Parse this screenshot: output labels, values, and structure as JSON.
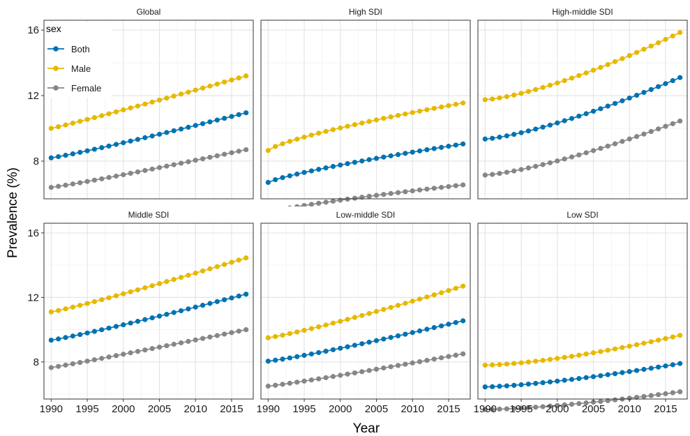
{
  "chart_data": {
    "type": "line",
    "xlabel": "Year",
    "ylabel": "Prevalence (%)",
    "x_ticks": [
      1990,
      1995,
      2000,
      2005,
      2010,
      2015
    ],
    "y_ticks": [
      8,
      12,
      16
    ],
    "xlim": [
      1989,
      2018
    ],
    "ylim": [
      5.7,
      16.6
    ],
    "legend": {
      "title": "sex",
      "placement": "top-left",
      "entries": [
        {
          "label": "Both",
          "color": "#0072B2"
        },
        {
          "label": "Male",
          "color": "#E7B800"
        },
        {
          "label": "Female",
          "color": "#868686"
        }
      ]
    },
    "panels": [
      {
        "title": "Global",
        "series": [
          {
            "name": "Both",
            "start": 8.2,
            "end": 10.95,
            "curve": 1.1
          },
          {
            "name": "Male",
            "start": 10.0,
            "end": 13.2,
            "curve": 1.05
          },
          {
            "name": "Female",
            "start": 6.4,
            "end": 8.7,
            "curve": 1.1
          }
        ]
      },
      {
        "title": "High SDI",
        "series": [
          {
            "name": "Both",
            "start": 6.7,
            "end": 9.05,
            "curve": 0.8
          },
          {
            "name": "Male",
            "start": 8.65,
            "end": 11.55,
            "curve": 0.75
          },
          {
            "name": "Female",
            "start": 4.85,
            "end": 6.55,
            "curve": 0.8
          }
        ]
      },
      {
        "title": "High-middle SDI",
        "series": [
          {
            "name": "Both",
            "start": 9.35,
            "end": 13.1,
            "curve": 1.35
          },
          {
            "name": "Male",
            "start": 11.75,
            "end": 15.85,
            "curve": 1.4
          },
          {
            "name": "Female",
            "start": 7.15,
            "end": 10.45,
            "curve": 1.35
          }
        ]
      },
      {
        "title": "Middle SDI",
        "series": [
          {
            "name": "Both",
            "start": 9.35,
            "end": 12.2,
            "curve": 1.1
          },
          {
            "name": "Male",
            "start": 11.1,
            "end": 14.45,
            "curve": 1.1
          },
          {
            "name": "Female",
            "start": 7.65,
            "end": 10.0,
            "curve": 1.05
          }
        ]
      },
      {
        "title": "Low-middle SDI",
        "series": [
          {
            "name": "Both",
            "start": 8.05,
            "end": 10.55,
            "curve": 1.15
          },
          {
            "name": "Male",
            "start": 9.5,
            "end": 12.7,
            "curve": 1.15
          },
          {
            "name": "Female",
            "start": 6.5,
            "end": 8.5,
            "curve": 1.1
          }
        ]
      },
      {
        "title": "Low SDI",
        "series": [
          {
            "name": "Both",
            "start": 6.45,
            "end": 7.9,
            "curve": 1.4
          },
          {
            "name": "Male",
            "start": 7.8,
            "end": 9.65,
            "curve": 1.5
          },
          {
            "name": "Female",
            "start": 5.05,
            "end": 6.15,
            "curve": 1.5
          }
        ]
      }
    ]
  }
}
